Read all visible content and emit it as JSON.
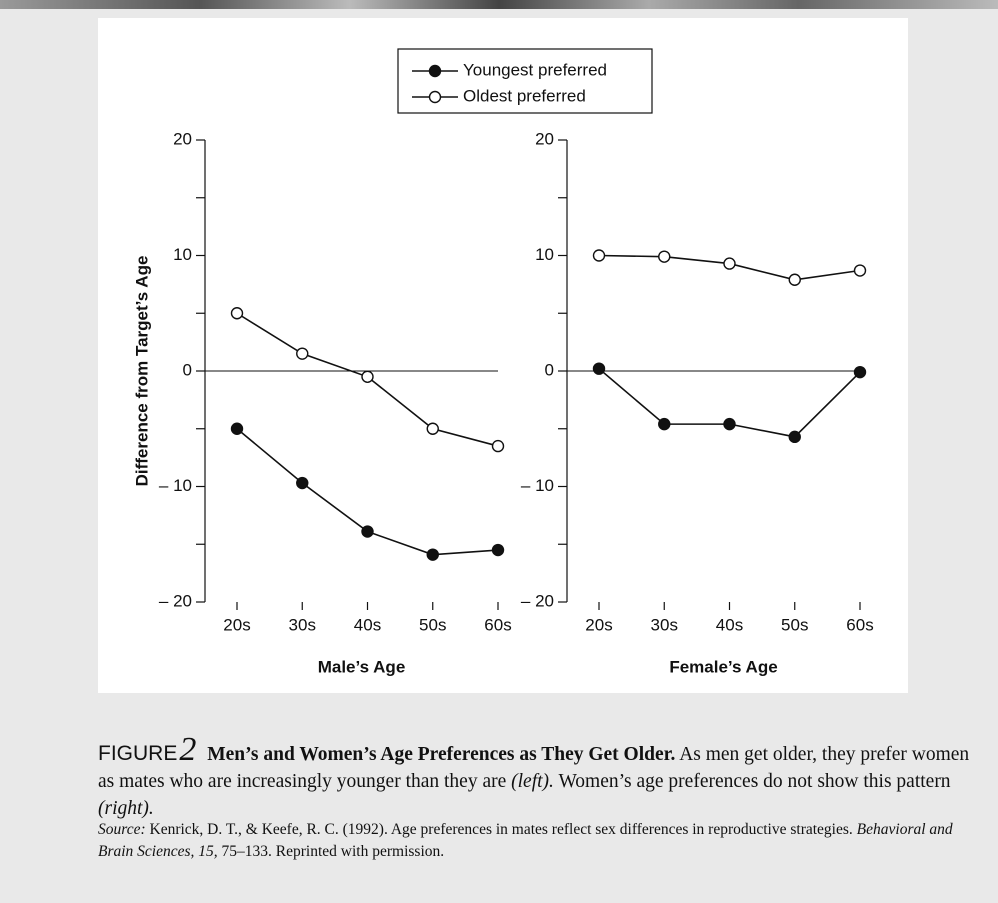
{
  "chart_data": [
    {
      "type": "line",
      "categories": [
        "20s",
        "30s",
        "40s",
        "50s",
        "60s"
      ],
      "x_label": "Male’s Age",
      "y_label": "Difference from Target’s Age",
      "ylim": [
        -20,
        20
      ],
      "yticks": [
        {
          "value": -20,
          "label": "– 20"
        },
        {
          "value": -10,
          "label": "– 10"
        },
        0,
        10,
        20
      ],
      "yminor": [
        -15,
        -5,
        5,
        15
      ],
      "zero_line": true,
      "series": [
        {
          "name": "Youngest preferred",
          "color": "#111111",
          "marker_fill": "#111111",
          "values": [
            -5,
            -9.7,
            -13.9,
            -15.9,
            -15.5
          ]
        },
        {
          "name": "Oldest preferred",
          "color": "#111111",
          "marker_fill": "#ffffff",
          "values": [
            5,
            1.5,
            -0.5,
            -5,
            -6.5
          ]
        }
      ]
    },
    {
      "type": "line",
      "categories": [
        "20s",
        "30s",
        "40s",
        "50s",
        "60s"
      ],
      "x_label": "Female’s Age",
      "ylim": [
        -20,
        20
      ],
      "yticks": [
        {
          "value": -20,
          "label": "– 20"
        },
        {
          "value": -10,
          "label": "– 10"
        },
        0,
        10,
        20
      ],
      "yminor": [
        -15,
        -5,
        5,
        15
      ],
      "zero_line": true,
      "series": [
        {
          "color": "#111111",
          "marker_fill": "#111111",
          "values": [
            0.2,
            -4.6,
            -4.6,
            -5.7,
            -0.1
          ]
        },
        {
          "color": "#111111",
          "marker_fill": "#ffffff",
          "values": [
            10,
            9.9,
            9.3,
            7.9,
            8.7
          ]
        }
      ]
    }
  ],
  "caption": {
    "figure_word": "FIGURE",
    "figure_number": "2",
    "title": "Men’s and Women’s Age Preferences as They Get Older.",
    "text_1": "As men get older, they prefer women as mates who are increasingly younger than they are",
    "aside_1": "(left).",
    "text_2": "Women’s age preferences do not show this pattern",
    "aside_2": "(right)."
  },
  "source": {
    "label": "Source:",
    "text_1": "Kenrick, D. T., & Keefe, R. C. (1992). Age preferences in mates reflect sex differences in reproductive strategies.",
    "journal": "Behavioral and Brain Sciences, 15,",
    "text_2": "75–133. Reprinted with permission."
  }
}
